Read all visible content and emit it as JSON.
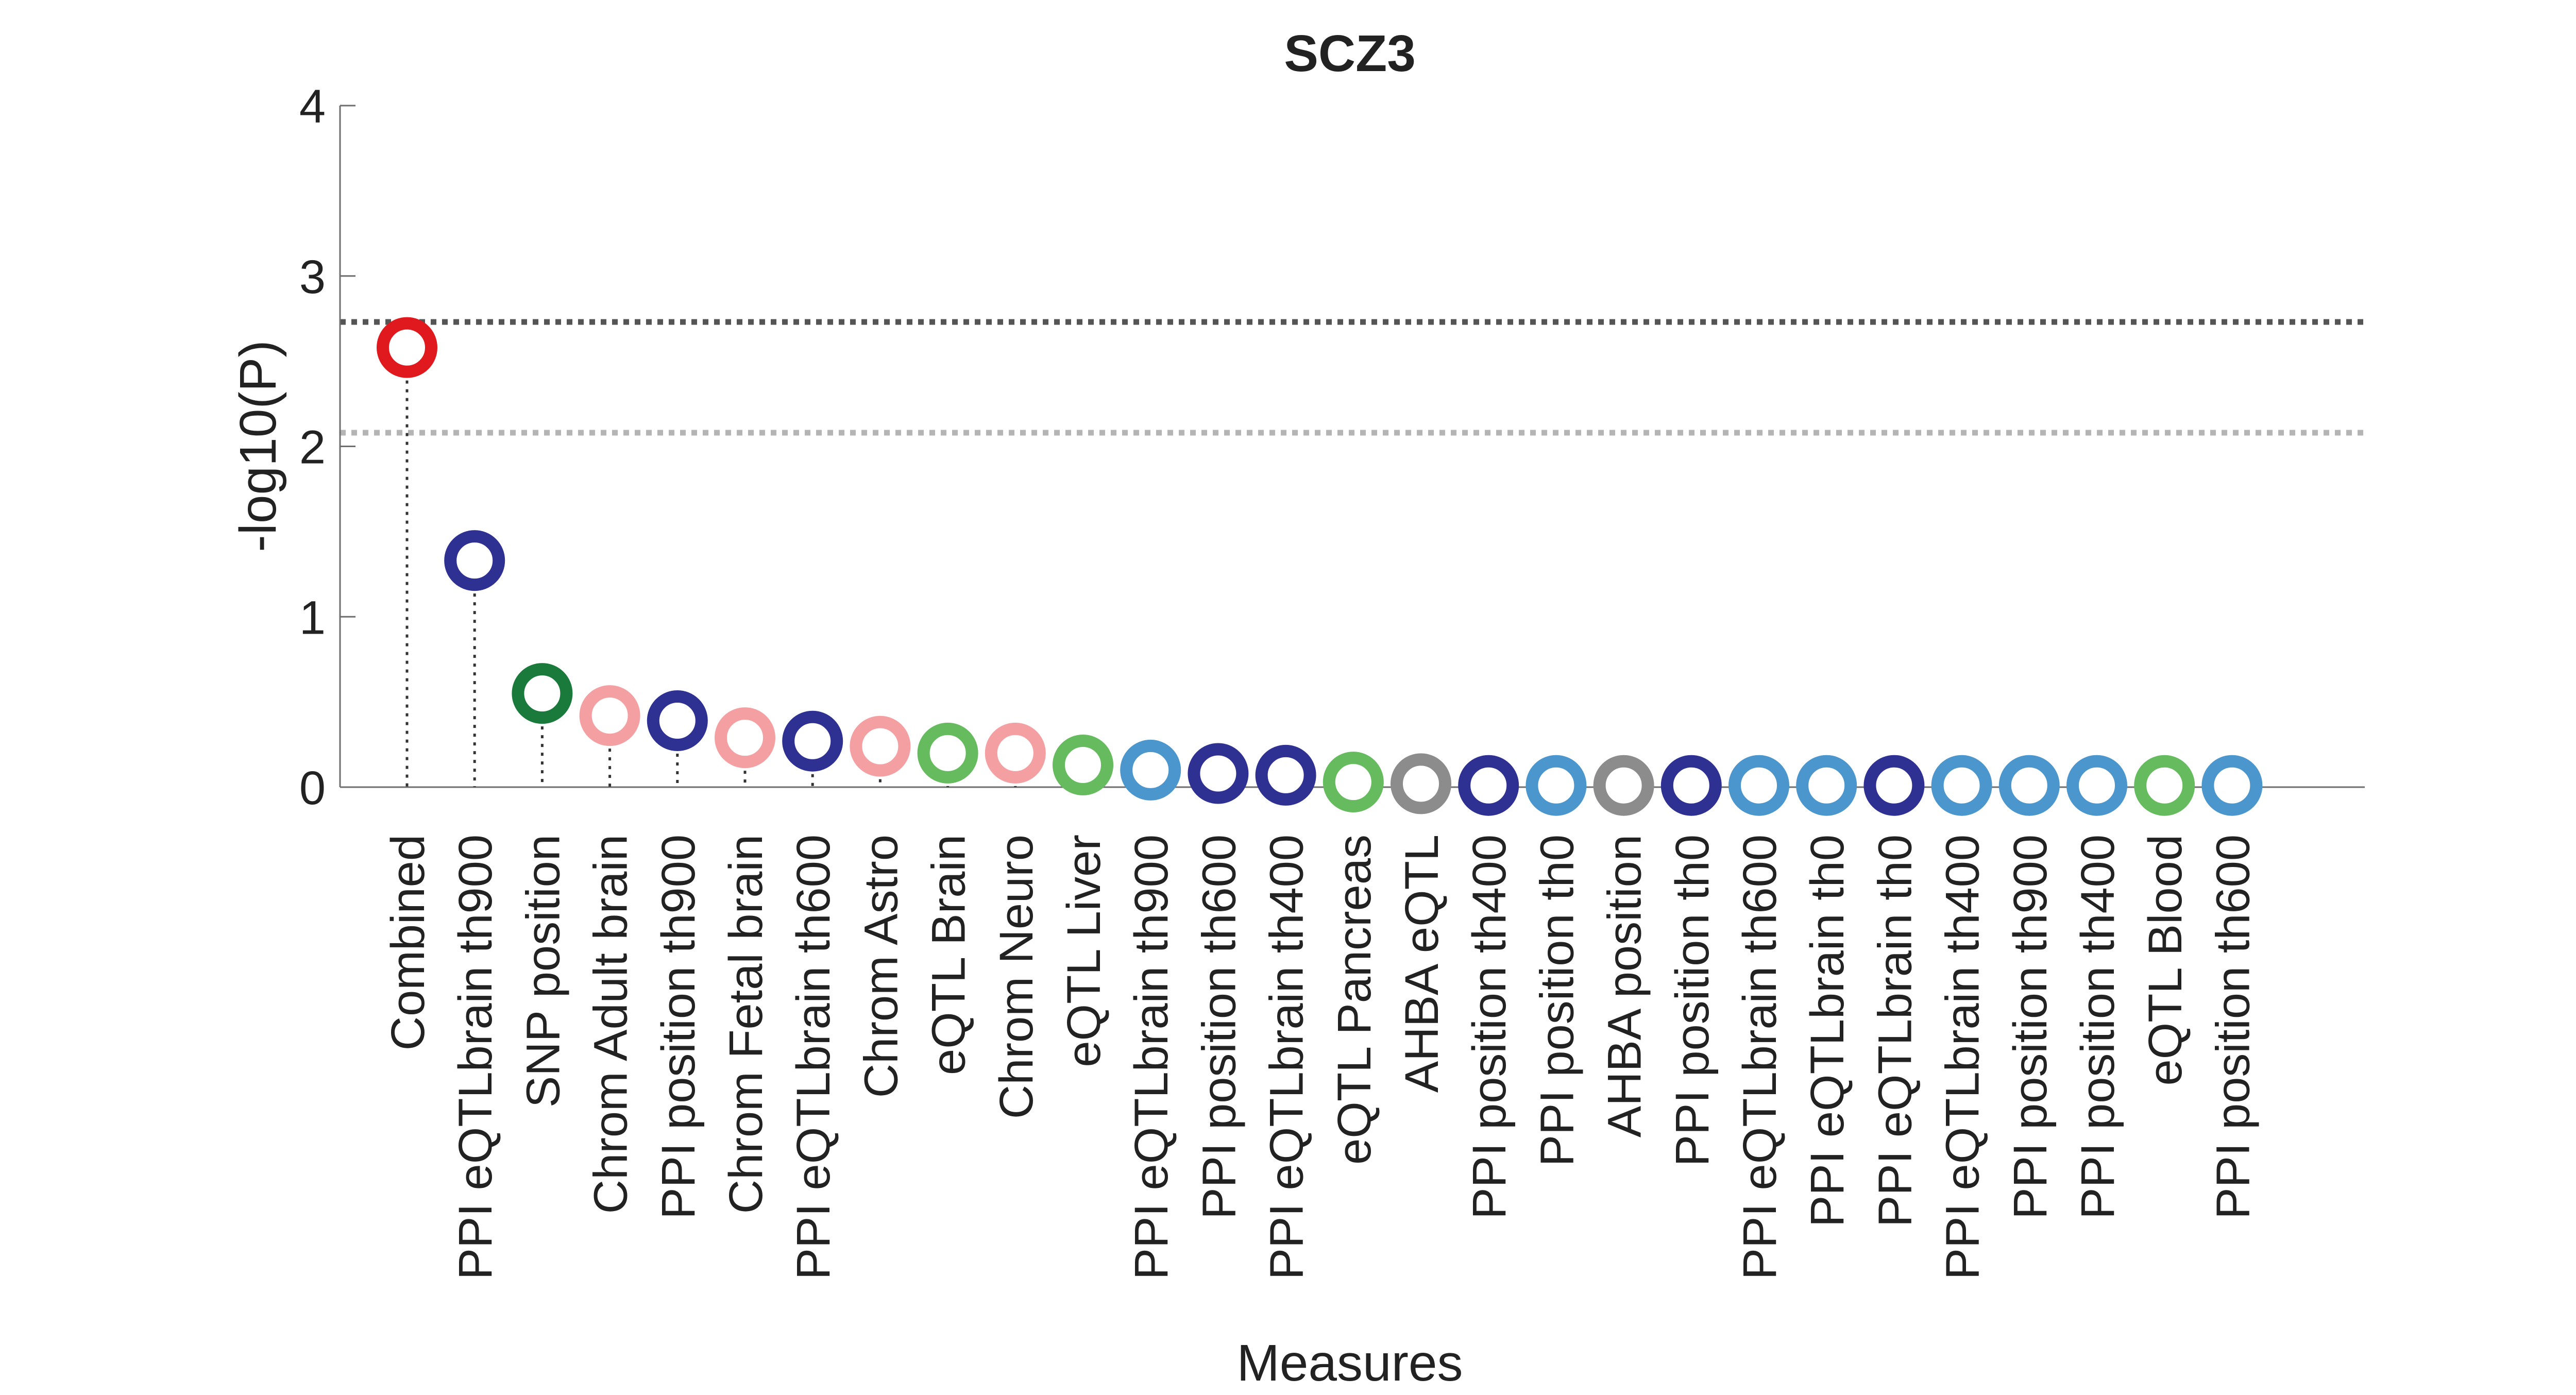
{
  "chart_data": {
    "type": "scatter",
    "title": "SCZ3",
    "xlabel": "Measures",
    "ylabel": "-log10(P)",
    "ylim": [
      0,
      4
    ],
    "yticks": [
      0,
      1,
      2,
      3,
      4
    ],
    "grid": false,
    "legend": "none",
    "thresholds": [
      {
        "value": 2.73,
        "color": "#555555"
      },
      {
        "value": 2.08,
        "color": "#b5b5b5"
      }
    ],
    "categories": [
      "Combined",
      "PPI eQTLbrain th900",
      "SNP position",
      "Chrom Adult brain",
      "PPI position th900",
      "Chrom Fetal brain",
      "PPI eQTLbrain th600",
      "Chrom Astro",
      "eQTL Brain",
      "Chrom Neuro",
      "eQTL Liver",
      "PPI eQTLbrain th900",
      "PPI position th600",
      "PPI eQTLbrain th400",
      "eQTL Pancreas",
      "AHBA eQTL",
      "PPI position th400",
      "PPI position th0",
      "AHBA position",
      "PPI position th0",
      "PPI eQTLbrain th600",
      "PPI eQTLbrain th0",
      "PPI eQTLbrain th0",
      "PPI eQTLbrain th400",
      "PPI position th900",
      "PPI position th400",
      "eQTL Blood",
      "PPI position th600"
    ],
    "values": [
      2.58,
      1.33,
      0.55,
      0.42,
      0.39,
      0.29,
      0.27,
      0.24,
      0.2,
      0.2,
      0.13,
      0.1,
      0.08,
      0.07,
      0.03,
      0.02,
      0.01,
      0.01,
      0.01,
      0.01,
      0.01,
      0.01,
      0.01,
      0.01,
      0.01,
      0.01,
      0.01,
      0.01
    ],
    "colors": [
      "#e0191f",
      "#2e3192",
      "#1a7a3c",
      "#f4a0a2",
      "#2e3192",
      "#f4a0a2",
      "#2e3192",
      "#f4a0a2",
      "#66bb5e",
      "#f4a0a2",
      "#66bb5e",
      "#4b96cc",
      "#2e3192",
      "#2e3192",
      "#66bb5e",
      "#8c8c8c",
      "#2e3192",
      "#4b96cc",
      "#8c8c8c",
      "#2e3192",
      "#4b96cc",
      "#4b96cc",
      "#2e3192",
      "#4b96cc",
      "#4b96cc",
      "#4b96cc",
      "#66bb5e",
      "#4b96cc"
    ]
  }
}
